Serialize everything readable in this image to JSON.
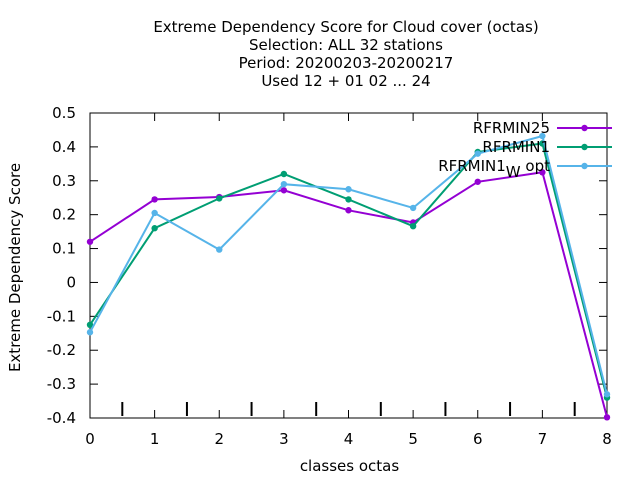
{
  "chart_data": {
    "type": "line",
    "title": [
      "Extreme Dependency Score  for Cloud cover (octas)",
      "Selection: ALL     32 stations",
      "Period: 20200203-20200217",
      "Used  12 + 01 02 ... 24"
    ],
    "xlabel": "classes octas",
    "ylabel": "Extreme Dependency Score",
    "x": [
      0,
      1,
      2,
      3,
      4,
      5,
      6,
      7,
      8
    ],
    "xlim": [
      0,
      8
    ],
    "ylim": [
      -0.4,
      0.5
    ],
    "yticks": [
      "0.5",
      "0.4",
      "0.3",
      "0.2",
      "0.1",
      "0",
      "-0.1",
      "-0.2",
      "-0.3",
      "-0.4"
    ],
    "xticks": [
      "0",
      "1",
      "2",
      "3",
      "4",
      "5",
      "6",
      "7",
      "8"
    ],
    "minor_ticks_at": [
      0.5,
      1.5,
      2.5,
      3.5,
      4.5,
      5.5,
      6.5,
      7.5
    ],
    "grid": false,
    "legend_position": "top-right",
    "series": [
      {
        "name": "RFRMIN25",
        "color": "#9400d3",
        "values": [
          0.12,
          0.245,
          0.252,
          0.272,
          0.213,
          0.177,
          0.297,
          0.325,
          -0.398
        ]
      },
      {
        "name": "RFRMIN1",
        "color": "#009e73",
        "values": [
          -0.125,
          0.16,
          0.248,
          0.32,
          0.245,
          0.166,
          0.385,
          0.41,
          -0.34
        ]
      },
      {
        "name_main": "RFRMIN1",
        "name_sub": "W",
        "name_suffix": " opt",
        "color": "#56b4e9",
        "values": [
          -0.147,
          0.205,
          0.097,
          0.29,
          0.275,
          0.22,
          0.38,
          0.432,
          -0.33
        ]
      }
    ]
  }
}
